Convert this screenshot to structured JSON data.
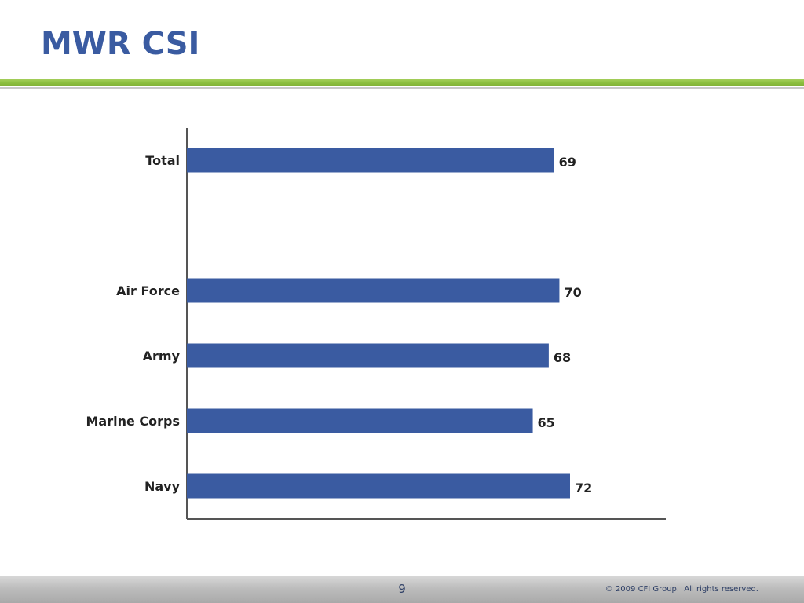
{
  "slide": {
    "title": "MWR CSI",
    "page_number": "9",
    "copyright": "© 2009 CFI Group.  All rights reserved."
  },
  "colors": {
    "title": "#3a5ba1",
    "bar": "#3a5ba1",
    "accent_rule": "#8cbf3f"
  },
  "chart_data": {
    "type": "bar",
    "orientation": "horizontal",
    "title": "",
    "xlabel": "",
    "ylabel": "",
    "categories": [
      "Total",
      "Air Force",
      "Army",
      "Marine Corps",
      "Navy"
    ],
    "values": [
      69,
      70,
      68,
      65,
      72
    ],
    "data_labels": [
      "69",
      "70",
      "68",
      "65",
      "72"
    ],
    "xlim": [
      0,
      90
    ],
    "grid": false,
    "legend": "none"
  }
}
